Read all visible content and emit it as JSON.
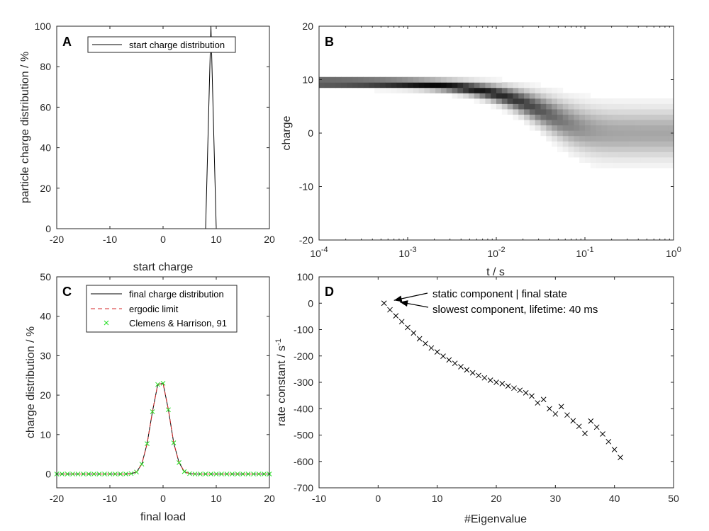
{
  "figure": {
    "background": "#ffffff"
  },
  "chart_data": [
    {
      "id": "A",
      "type": "line",
      "panel_letter": "A",
      "xlabel": "start charge",
      "ylabel": "particle charge distribution / %",
      "xlim": [
        -20,
        20
      ],
      "ylim": [
        0,
        100
      ],
      "xticks": [
        "-20",
        "-10",
        "0",
        "10",
        "20"
      ],
      "yticks": [
        "0",
        "20",
        "40",
        "60",
        "80",
        "100"
      ],
      "legend_location": "top",
      "series": [
        {
          "name": "start charge distribution",
          "color": "#000000",
          "x": [
            -20,
            8,
            9,
            10,
            20
          ],
          "y": [
            0,
            0,
            100,
            0,
            0
          ]
        }
      ]
    },
    {
      "id": "B",
      "type": "heatmap",
      "panel_letter": "B",
      "xlabel": "t / s",
      "ylabel": "charge",
      "xscale": "log",
      "xlim": [
        0.0001,
        1
      ],
      "ylim": [
        -20,
        20
      ],
      "xticks": [
        {
          "base": "10",
          "exp": "-4"
        },
        {
          "base": "10",
          "exp": "-3"
        },
        {
          "base": "10",
          "exp": "-2"
        },
        {
          "base": "10",
          "exp": "-1"
        },
        {
          "base": "10",
          "exp": "0"
        }
      ],
      "yticks": [
        "-20",
        "-10",
        "0",
        "10",
        "20"
      ],
      "description_model": {
        "center_start": 9.5,
        "lifetime_s": 0.04,
        "final_center": 0,
        "final_width": 3
      }
    },
    {
      "id": "C",
      "type": "line",
      "panel_letter": "C",
      "xlabel": "final load",
      "ylabel": "charge distribution / %",
      "xlim": [
        -20,
        20
      ],
      "ylim": [
        -3.5,
        50
      ],
      "xticks": [
        "-20",
        "-10",
        "0",
        "10",
        "20"
      ],
      "yticks": [
        "0",
        "10",
        "20",
        "30",
        "40",
        "50"
      ],
      "legend_location": "top",
      "x": [
        -20,
        -19,
        -18,
        -17,
        -16,
        -15,
        -14,
        -13,
        -12,
        -11,
        -10,
        -9,
        -8,
        -7,
        -6,
        -5,
        -4,
        -3,
        -2,
        -1,
        0,
        1,
        2,
        3,
        4,
        5,
        6,
        7,
        8,
        9,
        10,
        11,
        12,
        13,
        14,
        15,
        16,
        17,
        18,
        19,
        20
      ],
      "series": [
        {
          "name": "final charge distribution",
          "color": "#000000",
          "style": "solid",
          "y": [
            0,
            0,
            0,
            0,
            0,
            0,
            0,
            0,
            0,
            0,
            0,
            0,
            0,
            0,
            0.1,
            0.5,
            2.5,
            7.7,
            15.8,
            22.7,
            23,
            16.3,
            7.9,
            2.9,
            0.6,
            0.1,
            0,
            0,
            0,
            0,
            0,
            0,
            0,
            0,
            0,
            0,
            0,
            0,
            0,
            0,
            0
          ]
        },
        {
          "name": "ergodic limit",
          "color": "#d62728",
          "style": "dashed",
          "y": [
            0,
            0,
            0,
            0,
            0,
            0,
            0,
            0,
            0,
            0,
            0,
            0,
            0,
            0,
            0.1,
            0.5,
            2.5,
            7.7,
            15.8,
            22.7,
            23,
            16.3,
            7.9,
            2.9,
            0.6,
            0.1,
            0,
            0,
            0,
            0,
            0,
            0,
            0,
            0,
            0,
            0,
            0,
            0,
            0,
            0,
            0
          ]
        },
        {
          "name": "Clemens & Harrison, 91",
          "color": "#22dd22",
          "style": "markers-x",
          "y": [
            0,
            0,
            0,
            0,
            0,
            0,
            0,
            0,
            0,
            0,
            0,
            0,
            0,
            0,
            0.1,
            0.5,
            2.5,
            7.7,
            15.8,
            22.7,
            23,
            16.3,
            7.9,
            2.9,
            0.6,
            0.1,
            0,
            0,
            0,
            0,
            0,
            0,
            0,
            0,
            0,
            0,
            0,
            0,
            0,
            0,
            0
          ]
        }
      ]
    },
    {
      "id": "D",
      "type": "scatter",
      "panel_letter": "D",
      "xlabel": "#Eigenvalue",
      "ylabel": "rate constant / s",
      "ylabel_superscript": "-1",
      "xlim": [
        -10,
        50
      ],
      "ylim": [
        -700,
        100
      ],
      "xticks": [
        "-10",
        "0",
        "10",
        "20",
        "30",
        "40",
        "50"
      ],
      "yticks": [
        "-700",
        "-600",
        "-500",
        "-400",
        "-300",
        "-200",
        "-100",
        "0",
        "100"
      ],
      "marker": "x",
      "color": "#000000",
      "x": [
        1,
        2,
        3,
        4,
        5,
        6,
        7,
        8,
        9,
        10,
        11,
        12,
        13,
        14,
        15,
        16,
        17,
        18,
        19,
        20,
        21,
        22,
        23,
        24,
        25,
        26,
        27,
        28,
        29,
        30,
        31,
        32,
        33,
        34,
        35,
        36,
        37,
        38,
        39,
        40,
        41
      ],
      "y": [
        0,
        -25,
        -48,
        -70,
        -92,
        -113,
        -135,
        -153,
        -170,
        -185,
        -201,
        -215,
        -228,
        -241,
        -253,
        -264,
        -274,
        -283,
        -292,
        -300,
        -305,
        -314,
        -322,
        -330,
        -340,
        -352,
        -378,
        -365,
        -400,
        -420,
        -392,
        -424,
        -446,
        -467,
        -494,
        -447,
        -470,
        -496,
        -525,
        -555,
        -585
      ],
      "annotations": [
        {
          "text": "static component | final state",
          "point_index": 0
        },
        {
          "text": "slowest component, lifetime: 40 ms",
          "point_index": 1
        }
      ]
    }
  ]
}
